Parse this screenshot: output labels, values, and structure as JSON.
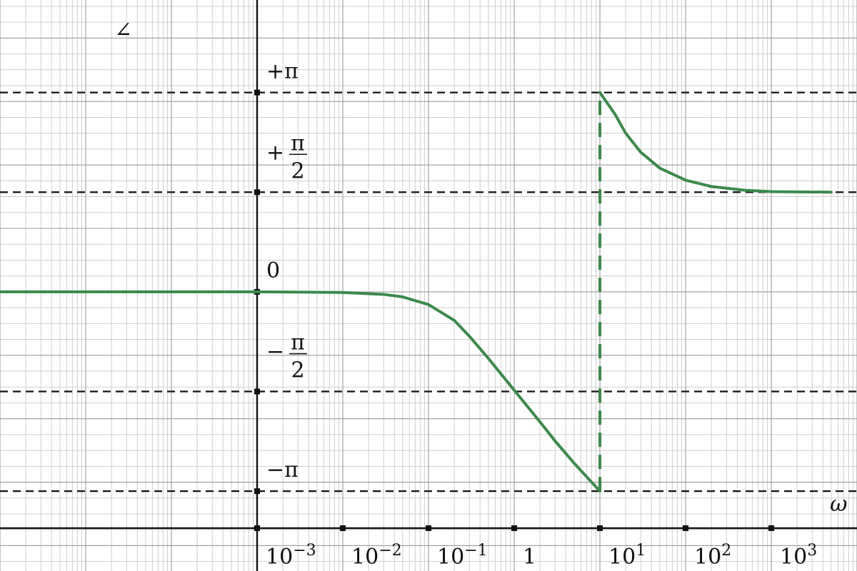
{
  "chart_data": {
    "type": "line",
    "x_scale": "log",
    "xlabel": "ω",
    "ylabel": "∠",
    "xlim": [
      1e-06,
      10000
    ],
    "ylim": [
      -4.4,
      4.6
    ],
    "grid": true,
    "x_ticks": [
      {
        "value": 0.001,
        "base": "10",
        "exp": "−3"
      },
      {
        "value": 0.01,
        "base": "10",
        "exp": "−2"
      },
      {
        "value": 0.1,
        "base": "10",
        "exp": "−1"
      },
      {
        "value": 1,
        "base": "1",
        "exp": ""
      },
      {
        "value": 10,
        "base": "10",
        "exp": "1"
      },
      {
        "value": 100,
        "base": "10",
        "exp": "2"
      },
      {
        "value": 1000,
        "base": "10",
        "exp": "3"
      }
    ],
    "y_ticks": [
      {
        "value": 3.14159,
        "label": "+π",
        "kind": "plain"
      },
      {
        "value": 1.5708,
        "sign": "+",
        "num": "π",
        "den": "2",
        "kind": "fraction"
      },
      {
        "value": 0,
        "label": "0",
        "kind": "plain"
      },
      {
        "value": -1.5708,
        "sign": "−",
        "num": "π",
        "den": "2",
        "kind": "fraction"
      },
      {
        "value": -3.14159,
        "label": "−π",
        "kind": "plain"
      }
    ],
    "reference_lines": [
      3.14159,
      1.5708,
      -1.5708,
      -3.14159
    ],
    "series": [
      {
        "color": "#3a8a4a",
        "points": [
          [
            1e-06,
            0
          ],
          [
            0.0001,
            0
          ],
          [
            0.001,
            -0.0001
          ],
          [
            0.01,
            -0.01
          ],
          [
            0.03,
            -0.04
          ],
          [
            0.05,
            -0.08
          ],
          [
            0.1,
            -0.2
          ],
          [
            0.2,
            -0.45
          ],
          [
            0.3,
            -0.7
          ],
          [
            0.5,
            -1.05
          ],
          [
            1,
            -1.55
          ],
          [
            2,
            -2.05
          ],
          [
            3,
            -2.35
          ],
          [
            5,
            -2.7
          ],
          [
            8,
            -3.0
          ],
          [
            10,
            -3.14159
          ]
        ]
      },
      {
        "color": "#3a8a4a",
        "points": [
          [
            10,
            3.14159
          ],
          [
            15,
            2.8
          ],
          [
            20,
            2.5
          ],
          [
            30,
            2.2
          ],
          [
            50,
            1.95
          ],
          [
            100,
            1.76
          ],
          [
            200,
            1.66
          ],
          [
            500,
            1.6
          ],
          [
            1000,
            1.58
          ],
          [
            5000,
            1.5708
          ]
        ]
      }
    ],
    "jump": {
      "x": 10,
      "y_from": -3.14159,
      "y_to": 3.14159,
      "color": "#3a8a4a"
    }
  }
}
